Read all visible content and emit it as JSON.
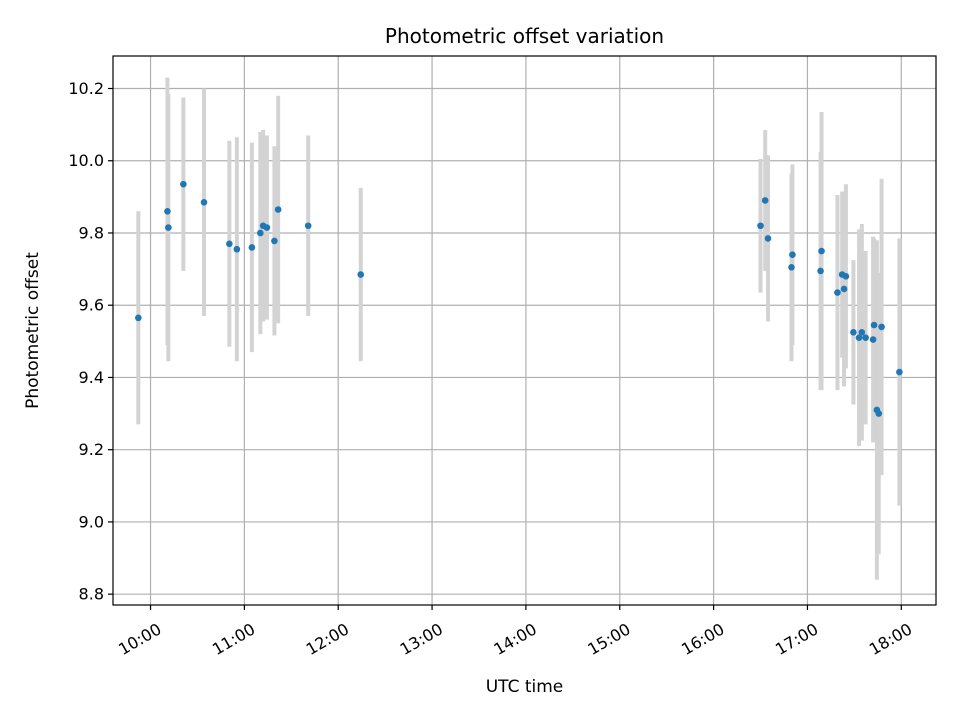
{
  "chart_data": {
    "type": "scatter",
    "title": "Photometric offset variation",
    "xlabel": "UTC time",
    "ylabel": "Photometric offset",
    "x_unit": "hours",
    "xlim": [
      9.6,
      18.37
    ],
    "ylim": [
      8.77,
      10.29
    ],
    "grid": true,
    "x_ticks": [
      {
        "value": 10,
        "label": "10:00"
      },
      {
        "value": 11,
        "label": "11:00"
      },
      {
        "value": 12,
        "label": "12:00"
      },
      {
        "value": 13,
        "label": "13:00"
      },
      {
        "value": 14,
        "label": "14:00"
      },
      {
        "value": 15,
        "label": "15:00"
      },
      {
        "value": 16,
        "label": "16:00"
      },
      {
        "value": 17,
        "label": "17:00"
      },
      {
        "value": 18,
        "label": "18:00"
      }
    ],
    "y_ticks": [
      {
        "value": 8.8,
        "label": "8.8"
      },
      {
        "value": 9.0,
        "label": "9.0"
      },
      {
        "value": 9.2,
        "label": "9.2"
      },
      {
        "value": 9.4,
        "label": "9.4"
      },
      {
        "value": 9.6,
        "label": "9.6"
      },
      {
        "value": 9.8,
        "label": "9.8"
      },
      {
        "value": 10.0,
        "label": "10.0"
      },
      {
        "value": 10.2,
        "label": "10.2"
      }
    ],
    "colors": {
      "point": "#1f77b4",
      "errorbar": "#d3d3d3",
      "grid": "#b0b0b0"
    },
    "points": [
      {
        "x": 9.87,
        "y": 9.565,
        "err": 0.295
      },
      {
        "x": 10.18,
        "y": 9.86,
        "err": 0.37
      },
      {
        "x": 10.19,
        "y": 9.815,
        "err": 0.37
      },
      {
        "x": 10.35,
        "y": 9.935,
        "err": 0.24
      },
      {
        "x": 10.57,
        "y": 9.885,
        "err": 0.315
      },
      {
        "x": 10.84,
        "y": 9.77,
        "err": 0.285
      },
      {
        "x": 10.92,
        "y": 9.755,
        "err": 0.31
      },
      {
        "x": 11.08,
        "y": 9.76,
        "err": 0.29
      },
      {
        "x": 11.17,
        "y": 9.8,
        "err": 0.28
      },
      {
        "x": 11.2,
        "y": 9.82,
        "err": 0.265
      },
      {
        "x": 11.24,
        "y": 9.815,
        "err": 0.255
      },
      {
        "x": 11.32,
        "y": 9.778,
        "err": 0.262
      },
      {
        "x": 11.36,
        "y": 9.865,
        "err": 0.315
      },
      {
        "x": 11.68,
        "y": 9.82,
        "err": 0.25
      },
      {
        "x": 12.24,
        "y": 9.685,
        "err": 0.24
      },
      {
        "x": 16.5,
        "y": 9.82,
        "err": 0.185
      },
      {
        "x": 16.55,
        "y": 9.89,
        "err": 0.195
      },
      {
        "x": 16.58,
        "y": 9.785,
        "err": 0.23
      },
      {
        "x": 16.83,
        "y": 9.705,
        "err": 0.26
      },
      {
        "x": 16.84,
        "y": 9.74,
        "err": 0.25
      },
      {
        "x": 17.14,
        "y": 9.695,
        "err": 0.33
      },
      {
        "x": 17.15,
        "y": 9.75,
        "err": 0.385
      },
      {
        "x": 17.32,
        "y": 9.635,
        "err": 0.27
      },
      {
        "x": 17.37,
        "y": 9.685,
        "err": 0.23
      },
      {
        "x": 17.39,
        "y": 9.645,
        "err": 0.27
      },
      {
        "x": 17.41,
        "y": 9.68,
        "err": 0.255
      },
      {
        "x": 17.49,
        "y": 9.525,
        "err": 0.2
      },
      {
        "x": 17.55,
        "y": 9.51,
        "err": 0.3
      },
      {
        "x": 17.58,
        "y": 9.525,
        "err": 0.3
      },
      {
        "x": 17.62,
        "y": 9.51,
        "err": 0.24
      },
      {
        "x": 17.7,
        "y": 9.505,
        "err": 0.285
      },
      {
        "x": 17.71,
        "y": 9.545,
        "err": 0.24
      },
      {
        "x": 17.74,
        "y": 9.31,
        "err": 0.47
      },
      {
        "x": 17.76,
        "y": 9.3,
        "err": 0.39
      },
      {
        "x": 17.79,
        "y": 9.54,
        "err": 0.41
      },
      {
        "x": 17.98,
        "y": 9.415,
        "err": 0.37
      }
    ]
  }
}
